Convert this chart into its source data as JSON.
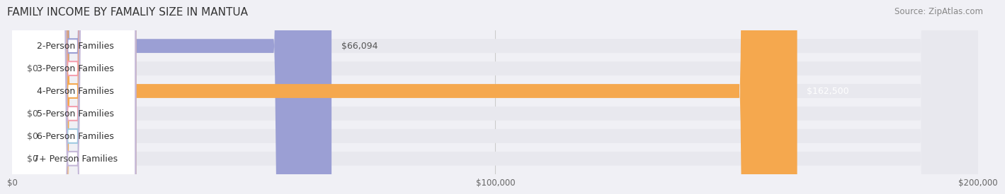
{
  "title": "FAMILY INCOME BY FAMALIY SIZE IN MANTUA",
  "source": "Source: ZipAtlas.com",
  "categories": [
    "2-Person Families",
    "3-Person Families",
    "4-Person Families",
    "5-Person Families",
    "6-Person Families",
    "7+ Person Families"
  ],
  "values": [
    66094,
    0,
    162500,
    0,
    0,
    0
  ],
  "bar_colors": [
    "#9b9fd4",
    "#f4a0b0",
    "#f5a84e",
    "#f4a0b0",
    "#9ecae1",
    "#c5b8d8"
  ],
  "label_colors": [
    "#9b9fd4",
    "#f4a0b0",
    "#f5a84e",
    "#f4a0b0",
    "#9ecae1",
    "#c5b8d8"
  ],
  "value_labels": [
    "$66,094",
    "$0",
    "$162,500",
    "$0",
    "$0",
    "$0"
  ],
  "value_label_colors": [
    "#555555",
    "#555555",
    "#ffffff",
    "#555555",
    "#555555",
    "#555555"
  ],
  "xlim": [
    0,
    200000
  ],
  "xticks": [
    0,
    100000,
    200000
  ],
  "xtick_labels": [
    "$0",
    "$100,000",
    "$200,000"
  ],
  "bar_height": 0.62,
  "background_color": "#f0f0f5",
  "bar_bg_color": "#e8e8ee",
  "title_fontsize": 11,
  "source_fontsize": 8.5,
  "label_fontsize": 9,
  "value_fontsize": 9
}
